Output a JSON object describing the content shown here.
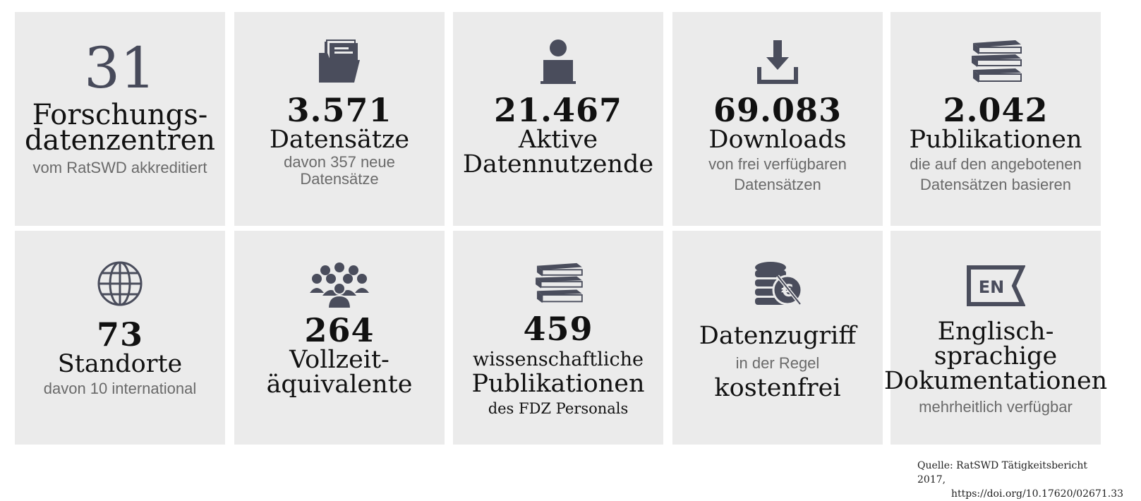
{
  "colors": {
    "tile_bg": "#ebebeb",
    "icon": "#4a4d5c",
    "text": "#111111",
    "subtext": "#6a6a6a"
  },
  "tiles": [
    {
      "number": "31",
      "label_lines": [
        "Forschungs-",
        "datenzentren"
      ],
      "sub": "vom RatSWD akkreditiert"
    },
    {
      "icon": "folder-icon",
      "number": "3.571",
      "label": "Datensätze",
      "sub_lines": [
        "davon 357 neue",
        "Datensätze"
      ]
    },
    {
      "icon": "user-laptop-icon",
      "number": "21.467",
      "label_lines": [
        "Aktive",
        "Datennutzende"
      ]
    },
    {
      "icon": "download-icon",
      "number": "69.083",
      "label": "Downloads",
      "sub_lines": [
        "von frei verfügbaren",
        "Datensätzen"
      ]
    },
    {
      "icon": "books-icon",
      "number": "2.042",
      "label": "Publikationen",
      "sub_lines": [
        "die auf den angebotenen",
        "Datensätzen basieren"
      ]
    },
    {
      "icon": "globe-icon",
      "number": "73",
      "label": "Standorte",
      "sub": "davon 10 international"
    },
    {
      "icon": "group-icon",
      "number": "264",
      "label_lines": [
        "Vollzeit-",
        "äquivalente"
      ]
    },
    {
      "icon": "books-icon",
      "number": "459",
      "pre": "wissenschaftliche",
      "label": "Publikationen",
      "post": "des FDZ Personals"
    },
    {
      "icon": "coins-euro-icon",
      "label": "Datenzugriff",
      "sub": "in der Regel",
      "label2": "kostenfrei"
    },
    {
      "icon": "english-flag-icon",
      "icon_text": "EN",
      "label_lines": [
        "Englisch-",
        "sprachige",
        "Dokumentationen"
      ],
      "sub": "mehrheitlich verfügbar"
    }
  ],
  "source": {
    "line1": "Quelle: RatSWD Tätigkeitsbericht 2017,",
    "line2": "https://doi.org/10.17620/02671.33"
  }
}
